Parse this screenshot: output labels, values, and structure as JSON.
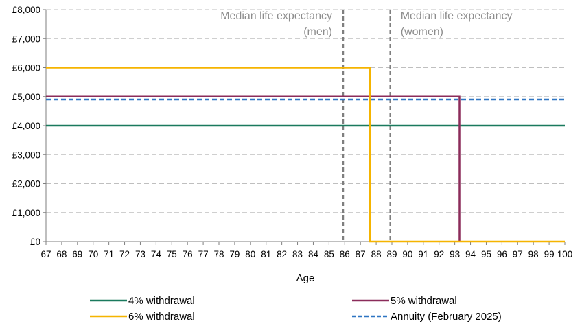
{
  "chart_data": {
    "type": "line",
    "title": "",
    "xlabel": "Age",
    "ylabel": "",
    "x_categories": [
      "67",
      "68",
      "69",
      "70",
      "71",
      "72",
      "73",
      "74",
      "75",
      "76",
      "77",
      "78",
      "79",
      "80",
      "81",
      "82",
      "83",
      "84",
      "85",
      "86",
      "87",
      "88",
      "89",
      "90",
      "91",
      "92",
      "93",
      "94",
      "95",
      "96",
      "97",
      "98",
      "99",
      "100"
    ],
    "y_ticks": [
      "£0",
      "£1,000",
      "£2,000",
      "£3,000",
      "£4,000",
      "£5,000",
      "£6,000",
      "£7,000",
      "£8,000"
    ],
    "ylim": [
      0,
      8000
    ],
    "grid": "horizontal dashed",
    "legend_position": "bottom",
    "series": [
      {
        "name": "4% withdrawal",
        "color": "#1a7a5e",
        "style": "solid",
        "points": [
          [
            67,
            4000
          ],
          [
            100,
            4000
          ]
        ]
      },
      {
        "name": "5% withdrawal",
        "color": "#8b2c5a",
        "style": "solid",
        "points": [
          [
            67,
            5000
          ],
          [
            93.3,
            5000
          ],
          [
            93.3,
            0
          ]
        ]
      },
      {
        "name": "6% withdrawal",
        "color": "#f5b400",
        "style": "solid",
        "points": [
          [
            67,
            6000
          ],
          [
            87.6,
            6000
          ],
          [
            87.6,
            0
          ],
          [
            100,
            0
          ]
        ]
      },
      {
        "name": "Annuity (February 2025)",
        "color": "#2e75c2",
        "style": "dashed",
        "points": [
          [
            67,
            4900
          ],
          [
            100,
            4900
          ]
        ]
      }
    ],
    "annotations": [
      {
        "label_lines": [
          "Median life expectancy",
          "(men)"
        ],
        "x": 85.9,
        "align": "right",
        "color": "#7f7f7f"
      },
      {
        "label_lines": [
          "Median life expectancy",
          "(women)"
        ],
        "x": 88.9,
        "align": "left",
        "color": "#7f7f7f"
      }
    ]
  }
}
